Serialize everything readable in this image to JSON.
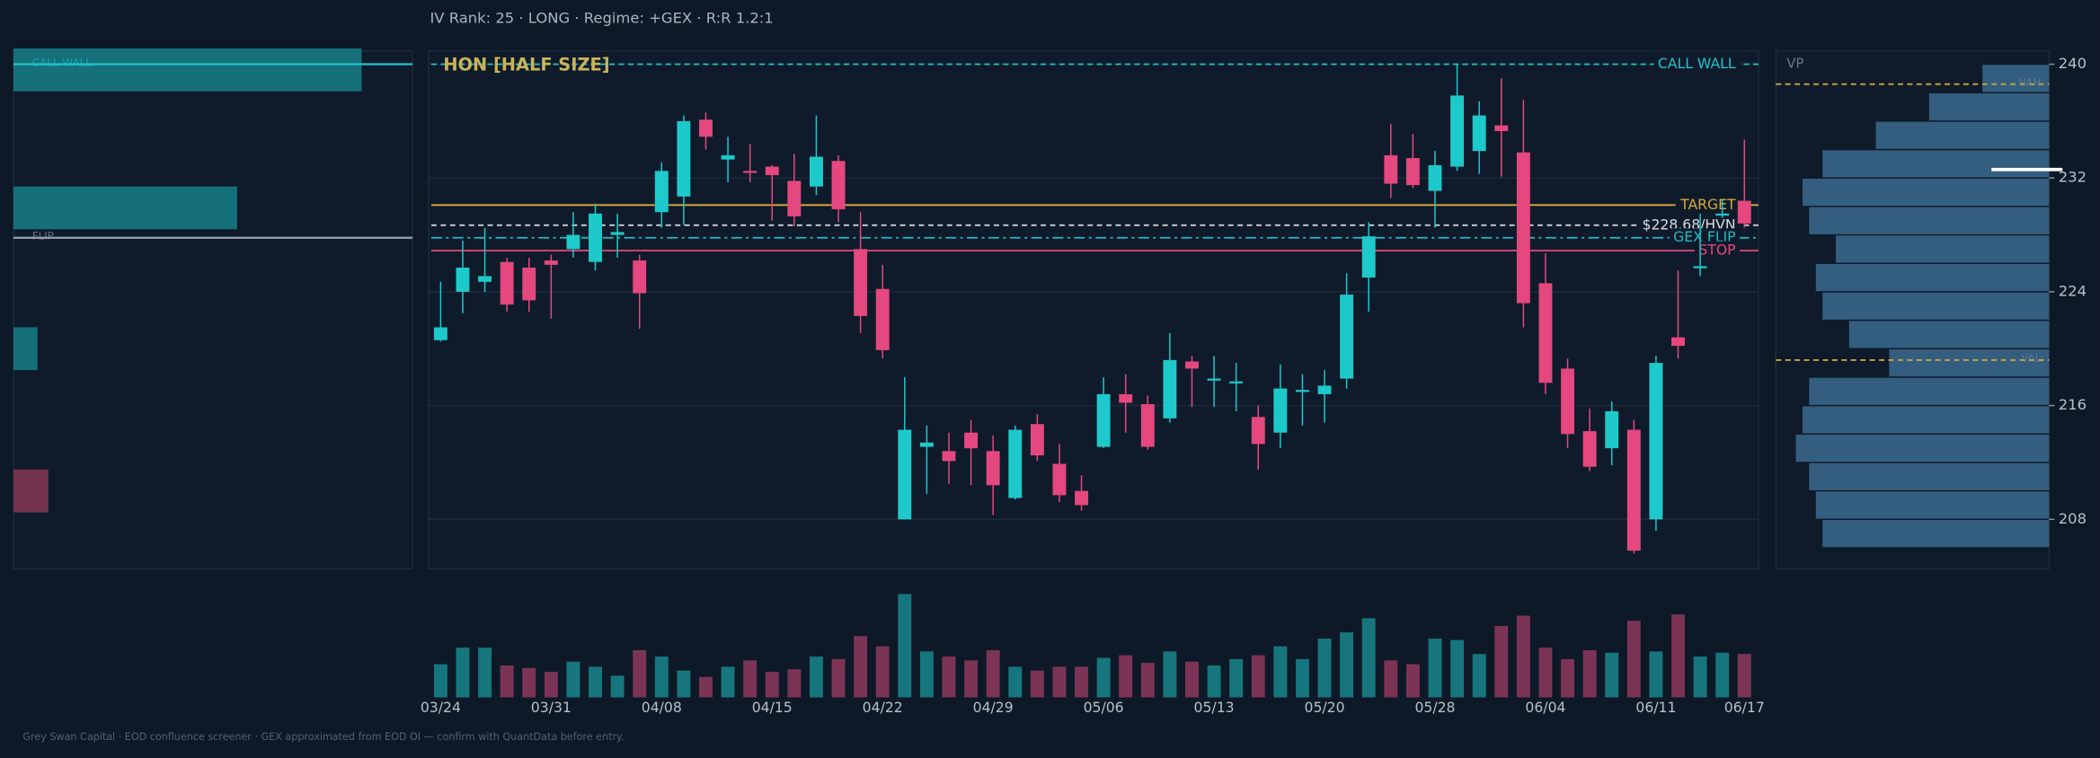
{
  "header": "IV Rank: 25  ·  LONG  ·  Regime: +GEX  ·  R:R 1.2:1",
  "footer": "Grey Swan Capital  ·  EOD confluence screener  ·  GEX approximated from EOD OI — confirm with QuantData before entry.",
  "chart_data": [
    {
      "type": "candlestick",
      "title": "HON  [HALF SIZE]",
      "categories": [
        "03/24",
        null,
        null,
        null,
        null,
        "03/31",
        null,
        null,
        null,
        null,
        "04/08",
        null,
        null,
        null,
        null,
        "04/15",
        null,
        null,
        null,
        null,
        "04/22",
        null,
        null,
        null,
        null,
        "04/29",
        null,
        null,
        null,
        null,
        "05/06",
        null,
        null,
        null,
        null,
        "05/13",
        null,
        null,
        null,
        null,
        "05/20",
        null,
        null,
        null,
        null,
        "05/28",
        null,
        null,
        null,
        null,
        "06/04",
        null,
        null,
        null,
        null,
        "06/11",
        null,
        null,
        null,
        "06/17"
      ],
      "open": [
        220.6,
        224.0,
        224.7,
        226.1,
        225.7,
        226.2,
        227.0,
        226.1,
        228.0,
        226.2,
        229.6,
        230.7,
        236.1,
        233.3,
        232.5,
        232.8,
        231.8,
        231.4,
        233.2,
        227.0,
        224.2,
        208.0,
        213.1,
        212.8,
        214.1,
        212.8,
        209.5,
        214.7,
        211.9,
        210.0,
        213.1,
        216.8,
        216.1,
        215.1,
        219.1,
        217.8,
        217.6,
        215.2,
        214.1,
        217.0,
        216.8,
        217.9,
        225.0,
        233.6,
        233.4,
        231.1,
        232.8,
        233.9,
        235.7,
        233.8,
        224.6,
        218.6,
        214.2,
        213.0,
        214.3,
        208.0,
        220.8,
        225.7,
        229.4,
        230.4
      ],
      "high": [
        224.7,
        227.6,
        228.5,
        226.4,
        226.4,
        226.6,
        229.6,
        230.2,
        229.5,
        226.6,
        233.1,
        236.4,
        236.6,
        234.9,
        234.4,
        232.9,
        233.7,
        236.4,
        233.6,
        229.6,
        225.9,
        218.0,
        214.6,
        214.1,
        215.0,
        213.9,
        214.6,
        215.4,
        213.3,
        211.1,
        218.0,
        218.2,
        216.7,
        221.1,
        219.5,
        219.5,
        219.0,
        216.0,
        218.9,
        218.2,
        218.5,
        225.3,
        228.9,
        235.8,
        235.1,
        233.9,
        240.0,
        237.4,
        239.0,
        237.5,
        226.7,
        219.3,
        215.8,
        216.3,
        215.0,
        219.5,
        225.5,
        229.5,
        230.5,
        234.7
      ],
      "low": [
        220.5,
        222.5,
        224.0,
        222.6,
        222.6,
        222.1,
        226.4,
        225.5,
        226.4,
        221.4,
        228.5,
        228.7,
        234.0,
        231.7,
        231.7,
        229.0,
        228.6,
        230.8,
        228.9,
        221.1,
        219.3,
        208.0,
        209.8,
        210.5,
        210.4,
        208.3,
        209.4,
        212.1,
        209.2,
        208.6,
        213.0,
        214.1,
        212.9,
        214.8,
        215.9,
        215.9,
        215.6,
        211.5,
        213.0,
        214.6,
        214.8,
        217.2,
        222.6,
        230.6,
        231.3,
        228.5,
        232.5,
        232.3,
        232.1,
        221.5,
        216.8,
        213.0,
        211.4,
        211.8,
        205.6,
        207.2,
        219.3,
        225.1,
        229.2,
        228.5
      ],
      "close": [
        221.5,
        225.7,
        225.1,
        223.1,
        223.4,
        225.9,
        228.0,
        229.5,
        228.2,
        223.9,
        232.5,
        236.0,
        234.9,
        233.6,
        232.4,
        232.2,
        229.3,
        233.5,
        229.8,
        222.3,
        219.9,
        214.3,
        213.4,
        212.1,
        213.0,
        210.4,
        214.3,
        212.5,
        209.7,
        209.0,
        216.8,
        216.2,
        213.1,
        219.2,
        218.6,
        217.9,
        217.7,
        213.3,
        217.2,
        217.1,
        217.4,
        223.8,
        227.9,
        231.6,
        231.5,
        232.9,
        237.8,
        236.4,
        235.3,
        223.2,
        217.6,
        214.0,
        211.7,
        215.6,
        205.8,
        219.0,
        220.2,
        225.8,
        229.5,
        228.8
      ],
      "up_color": "#1ec9cb",
      "down_color": "#e4487e",
      "ylim": [
        204.52,
        240.94
      ],
      "yticks": [
        208,
        216,
        224,
        232,
        240
      ],
      "grid": true,
      "levels": [
        {
          "label": "CALL WALL",
          "value": 240,
          "color": "#22c4cc",
          "style": "dashed"
        },
        {
          "label": "TARGET",
          "value": 230.1,
          "color": "#d9a93a",
          "style": "solid"
        },
        {
          "label": "$228.68/HVN",
          "value": 228.68,
          "color": "#d8dde3",
          "style": "dashed"
        },
        {
          "label": "GEX FLIP",
          "value": 227.8,
          "color": "#22b8c4",
          "style": "dashdot"
        },
        {
          "label": "STOP",
          "value": 226.9,
          "color": "#e4487e",
          "style": "solid"
        }
      ]
    },
    {
      "type": "volume",
      "values": [
        26,
        39,
        39,
        25,
        23,
        20,
        28,
        24,
        17,
        37,
        32,
        21,
        16,
        24,
        29,
        20,
        22,
        32,
        30,
        48,
        40,
        81,
        36,
        32,
        29,
        37,
        24,
        21,
        24,
        24,
        31,
        33,
        27,
        36,
        28,
        25,
        30,
        33,
        40,
        30,
        46,
        51,
        62,
        29,
        26,
        46,
        45,
        34,
        56,
        64,
        39,
        30,
        37,
        35,
        60,
        36,
        65,
        32,
        35,
        34
      ],
      "up_color": "#17767d",
      "down_color": "#7b3456",
      "ylim": [
        0,
        85
      ]
    },
    {
      "type": "barh",
      "y": [
        239.6,
        229.9,
        220.0,
        210.0
      ],
      "values": [
        260,
        167,
        18,
        26
      ],
      "colors": [
        "#15707a",
        "#15707a",
        "#15707a",
        "#74344f"
      ],
      "xlim": [
        0,
        298
      ],
      "levels": [
        {
          "label": "CALL WALL",
          "value": 240,
          "color": "#22c4cc"
        },
        {
          "label": "FLIP",
          "value": 227.8,
          "color": "#9aa3ad"
        }
      ]
    },
    {
      "type": "profile",
      "title": "VP",
      "y": [
        239,
        237,
        235,
        233,
        231,
        229,
        227,
        225,
        223,
        221,
        219,
        217,
        215,
        213,
        211,
        209,
        207
      ],
      "values": [
        50,
        90,
        130,
        170,
        185,
        180,
        160,
        175,
        170,
        150,
        120,
        180,
        185,
        190,
        180,
        175,
        170
      ],
      "color": "#3a6a8e",
      "xlim": [
        0,
        205
      ],
      "levels": [
        {
          "label": "VAH",
          "value": 238.6,
          "color": "#c8a640"
        },
        {
          "label": "VAL",
          "value": 219.2,
          "color": "#c8a640"
        }
      ],
      "poc": 232.6
    }
  ]
}
